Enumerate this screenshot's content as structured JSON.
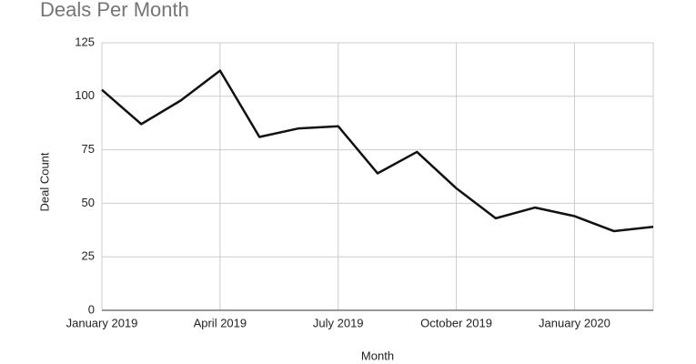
{
  "chart_data": {
    "type": "line",
    "title": "Deals Per Month",
    "x_label": "Month",
    "y_label": "Deal Count",
    "categories": [
      "January 2019",
      null,
      null,
      "April 2019",
      null,
      null,
      "July 2019",
      null,
      null,
      "October 2019",
      null,
      null,
      "January 2020",
      null,
      null
    ],
    "series": [
      {
        "name": "Deals",
        "color": "#111111",
        "values": [
          103,
          87,
          98,
          112,
          81,
          85,
          86,
          64,
          74,
          57,
          43,
          48,
          44,
          37,
          39
        ]
      }
    ],
    "ylim": [
      0,
      125
    ],
    "yticks": [
      0,
      25,
      50,
      75,
      100,
      125
    ],
    "grid": true
  }
}
